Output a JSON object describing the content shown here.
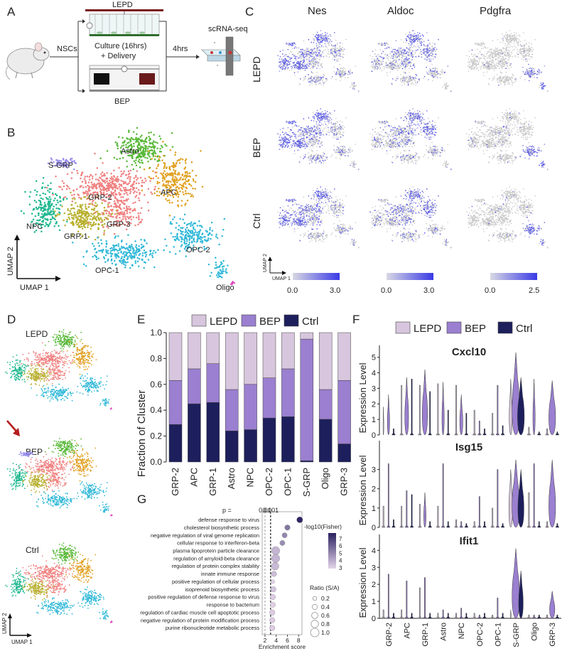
{
  "panels": {
    "a": {
      "label": "A",
      "nscs": "NSCs",
      "lepd": "LEPD",
      "bep": "BEP",
      "culture1": "Culture (16hrs)",
      "culture2": "+ Delivery",
      "hrs": "4hrs",
      "seq": "scRNA-seq"
    },
    "b": {
      "label": "B",
      "clusters": [
        "Astro",
        "S-GRP",
        "APC",
        "GRP-2",
        "NPC",
        "GRP-3",
        "GRP-1",
        "OPC-2",
        "OPC-1",
        "Oligo"
      ],
      "umap1": "UMAP 1",
      "umap2": "UMAP 2"
    },
    "c": {
      "label": "C",
      "genes": [
        "Nes",
        "Aldoc",
        "Pdgfra"
      ],
      "conditions": [
        "LEPD",
        "BEP",
        "Ctrl"
      ],
      "scale_min": [
        "0.0",
        "0.0",
        "0.0"
      ],
      "scale_max": [
        "3.0",
        "3.0",
        "2.5"
      ],
      "umap1": "UMAP 1",
      "umap2": "UMAP 2"
    },
    "d": {
      "label": "D",
      "conditions": [
        "LEPD",
        "BEP",
        "Ctrl"
      ],
      "umap1": "UMAP 1",
      "umap2": "UMAP 2"
    },
    "e": {
      "label": "E"
    },
    "f": {
      "label": "F",
      "ylabel": "Expression Level",
      "legend": [
        "LEPD",
        "BEP",
        "Ctrl"
      ]
    },
    "g": {
      "label": "G"
    }
  },
  "colors": {
    "lepd": "#d7c6dd",
    "bep": "#9b7fd0",
    "ctrl": "#1d1f5c",
    "cluster_green": "#58b838",
    "cluster_orange": "#e0a020",
    "cluster_pink": "#f08080",
    "cluster_olive": "#b8b030",
    "cluster_teal": "#20b890",
    "cluster_cyan": "#30b8d8",
    "cluster_lav": "#9a90f0"
  },
  "chart_data": [
    {
      "id": "fraction",
      "type": "bar",
      "stacked": true,
      "categories": [
        "GRP-2",
        "APC",
        "GRP-1",
        "Astro",
        "NPC",
        "OPC-2",
        "OPC-1",
        "S-GRP",
        "Oligo",
        "GRP-3"
      ],
      "series": [
        {
          "name": "Ctrl",
          "values": [
            0.29,
            0.45,
            0.46,
            0.24,
            0.25,
            0.34,
            0.35,
            0.01,
            0.33,
            0.14
          ]
        },
        {
          "name": "BEP",
          "values": [
            0.34,
            0.27,
            0.3,
            0.32,
            0.35,
            0.31,
            0.37,
            0.94,
            0.23,
            0.49
          ]
        },
        {
          "name": "LEPD",
          "values": [
            0.37,
            0.28,
            0.24,
            0.44,
            0.4,
            0.35,
            0.28,
            0.05,
            0.44,
            0.37
          ]
        }
      ],
      "ylabel": "Fraction of Cluster",
      "ylim": [
        0,
        1.0
      ],
      "yticks": [
        "0.0",
        "0.2",
        "0.4",
        "0.6",
        "0.8",
        "1.0"
      ],
      "legend": [
        "LEPD",
        "BEP",
        "Ctrl"
      ]
    },
    {
      "id": "violin",
      "type": "violin",
      "categories": [
        "GRP-2",
        "APC",
        "GRP-1",
        "Astro",
        "NPC",
        "OPC-2",
        "OPC-1",
        "S-GRP",
        "Oligo",
        "GRP-3"
      ],
      "groups": [
        "LEPD",
        "BEP",
        "Ctrl"
      ],
      "genes": [
        {
          "name": "Cxcl10",
          "ymax": 5,
          "yticks": [
            "0",
            "1",
            "2",
            "3",
            "4",
            "5"
          ],
          "peaks": [
            [
              1.8,
              2.6,
              0.4
            ],
            [
              3.2,
              3.7,
              3.6
            ],
            [
              3.2,
              4.2,
              2.8
            ],
            [
              3.3,
              3.4,
              1.6
            ],
            [
              3.2,
              2.6,
              1.4
            ],
            [
              1.6,
              0.9,
              0.4
            ],
            [
              1.4,
              3.2,
              0.6
            ],
            [
              3.6,
              5.3,
              3.7
            ],
            [
              0.5,
              3.6,
              0.2
            ],
            [
              0.4,
              3.5,
              0.2
            ]
          ],
          "widths": [
            [
              0.1,
              0.3,
              0.05
            ],
            [
              0.05,
              0.5,
              0.05
            ],
            [
              0.05,
              0.7,
              0.05
            ],
            [
              0.05,
              0.3,
              0.05
            ],
            [
              0.05,
              0.4,
              0.05
            ],
            [
              0.05,
              0.05,
              0.05
            ],
            [
              0.05,
              0.05,
              0.05
            ],
            [
              0.4,
              1.0,
              0.9
            ],
            [
              0.05,
              0.3,
              0.05
            ],
            [
              0.05,
              0.9,
              0.05
            ]
          ]
        },
        {
          "name": "Isg15",
          "ymax": 4,
          "yticks": [
            "0",
            "1",
            "2",
            "3"
          ],
          "peaks": [
            [
              1.1,
              3.3,
              0.4
            ],
            [
              1.1,
              1.9,
              1.7
            ],
            [
              1.2,
              1.8,
              0.3
            ],
            [
              1.1,
              3.3,
              0.3
            ],
            [
              0.4,
              0.3,
              0.2
            ],
            [
              0.3,
              1.6,
              0.3
            ],
            [
              1.0,
              3.0,
              0.2
            ],
            [
              3.0,
              3.5,
              3.0
            ],
            [
              1.8,
              3.3,
              0.3
            ],
            [
              0.3,
              3.5,
              0.2
            ]
          ],
          "widths": [
            [
              0.05,
              0.05,
              0.05
            ],
            [
              0.05,
              0.05,
              0.05
            ],
            [
              0.05,
              0.3,
              0.05
            ],
            [
              0.05,
              0.05,
              0.05
            ],
            [
              0.05,
              0.05,
              0.05
            ],
            [
              0.05,
              0.05,
              0.05
            ],
            [
              0.05,
              0.05,
              0.05
            ],
            [
              0.5,
              1.0,
              0.8
            ],
            [
              0.05,
              0.05,
              0.05
            ],
            [
              0.05,
              0.9,
              0.05
            ]
          ]
        },
        {
          "name": "Ifit1",
          "ymax": 4,
          "yticks": [
            "0",
            "1",
            "2",
            "3",
            "4"
          ],
          "peaks": [
            [
              0.5,
              2.6,
              0.3
            ],
            [
              0.5,
              2.2,
              0.3
            ],
            [
              1.8,
              2.4,
              0.3
            ],
            [
              0.3,
              0.5,
              0.3
            ],
            [
              0.3,
              0.6,
              0.3
            ],
            [
              0.3,
              0.2,
              0.3
            ],
            [
              0.2,
              1.2,
              0.3
            ],
            [
              0.5,
              4.1,
              2.8
            ],
            [
              0.2,
              0.2,
              0.2
            ],
            [
              0.2,
              1.6,
              0.2
            ]
          ],
          "widths": [
            [
              0.05,
              0.05,
              0.05
            ],
            [
              0.05,
              0.05,
              0.05
            ],
            [
              0.05,
              0.05,
              0.05
            ],
            [
              0.05,
              0.05,
              0.05
            ],
            [
              0.05,
              0.05,
              0.05
            ],
            [
              0.05,
              0.05,
              0.05
            ],
            [
              0.05,
              0.05,
              0.05
            ],
            [
              0.1,
              1.0,
              0.6
            ],
            [
              0.05,
              0.05,
              0.05
            ],
            [
              0.05,
              0.7,
              0.05
            ]
          ]
        }
      ]
    },
    {
      "id": "enrichment",
      "type": "scatter",
      "terms": [
        {
          "term": "defense response to virus",
          "score": 8.2,
          "log10p": 7.5,
          "ratio": 0.55
        },
        {
          "term": "cholesterol biosynthetic process",
          "score": 6.0,
          "log10p": 5.4,
          "ratio": 0.45
        },
        {
          "term": "negative regulation of viral genome replication",
          "score": 5.5,
          "log10p": 5.0,
          "ratio": 0.4
        },
        {
          "term": "cellular response to interferon-beta",
          "score": 5.1,
          "log10p": 4.8,
          "ratio": 0.4
        },
        {
          "term": "plasma lipoprotein particle clearance",
          "score": 3.9,
          "log10p": 3.8,
          "ratio": 0.95
        },
        {
          "term": "regulation of amyloid-beta clearance",
          "score": 3.9,
          "log10p": 3.8,
          "ratio": 0.95
        },
        {
          "term": "regulation of protein complex stability",
          "score": 3.8,
          "log10p": 3.7,
          "ratio": 0.85
        },
        {
          "term": "innate immune response",
          "score": 3.6,
          "log10p": 3.6,
          "ratio": 0.45
        },
        {
          "term": "positive regulation of cellular process",
          "score": 3.4,
          "log10p": 3.0,
          "ratio": 0.15
        },
        {
          "term": "isoprenoid biosynthetic process",
          "score": 3.5,
          "log10p": 3.4,
          "ratio": 0.45
        },
        {
          "term": "positive regulation of defense response to virus",
          "score": 3.4,
          "log10p": 3.2,
          "ratio": 0.45
        },
        {
          "term": "response to bacterium",
          "score": 3.4,
          "log10p": 3.1,
          "ratio": 0.4
        },
        {
          "term": "regulation of cardiac muscle cell apoptotic process",
          "score": 3.3,
          "log10p": 3.2,
          "ratio": 0.45
        },
        {
          "term": "negative regulation of protein modification process",
          "score": 3.3,
          "log10p": 3.2,
          "ratio": 0.45
        },
        {
          "term": "purine ribonucleotide metabolic process",
          "score": 3.3,
          "log10p": 3.2,
          "ratio": 0.45
        }
      ],
      "xlabel": "Enrichment score",
      "xticks": [
        "2",
        "4",
        "6",
        "8"
      ],
      "xlim": [
        1.5,
        8.6
      ],
      "threshold_label": "p =",
      "thresholds": [
        {
          "label": "0.01",
          "score": 2.0
        },
        {
          "label": "0.001",
          "score": 3.0
        }
      ],
      "color_legend_title": "-log10(Fisher)",
      "color_ticks": [
        "7",
        "6",
        "5",
        "4",
        "3"
      ],
      "size_legend_title": "Ratio (S/A)",
      "size_ticks": [
        "0.2",
        "0.4",
        "0.6",
        "0.8",
        "1.0"
      ]
    }
  ]
}
